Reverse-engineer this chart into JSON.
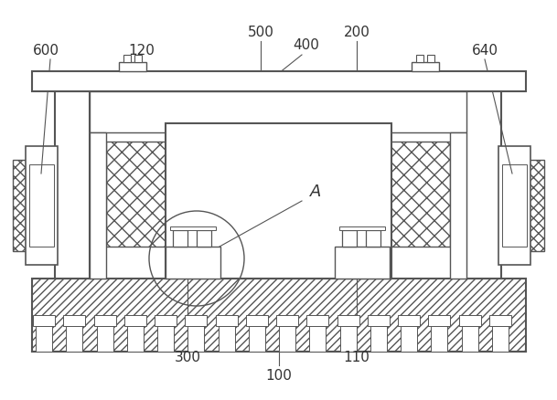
{
  "bg_color": "#ffffff",
  "line_color": "#555555",
  "label_color": "#333333",
  "figsize": [
    6.09,
    4.38
  ],
  "dpi": 100
}
